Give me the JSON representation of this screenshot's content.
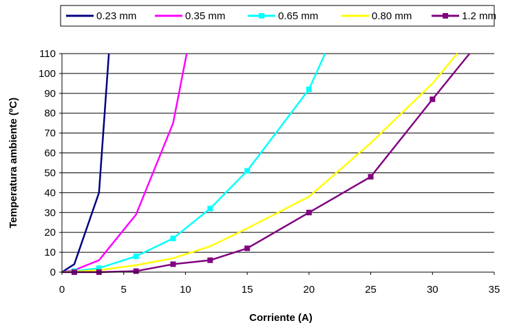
{
  "chart_data": {
    "type": "line",
    "xlabel": "Corriente (A)",
    "ylabel": "Temperatura ambiente (ºC)",
    "xlim": [
      0,
      35
    ],
    "ylim": [
      0,
      110
    ],
    "x_ticks": [
      0,
      5,
      10,
      15,
      20,
      25,
      30,
      35
    ],
    "y_ticks": [
      0,
      10,
      20,
      30,
      40,
      50,
      60,
      70,
      80,
      90,
      100,
      110
    ],
    "grid": "horizontal",
    "legend_position": "top",
    "series": [
      {
        "name": "0.23 mm",
        "color": "#000080",
        "marker": "none",
        "points": [
          [
            0,
            0
          ],
          [
            1,
            4
          ],
          [
            3,
            40
          ],
          [
            3.8,
            110
          ]
        ]
      },
      {
        "name": "0.35 mm",
        "color": "#ff00ff",
        "marker": "none",
        "points": [
          [
            0,
            0
          ],
          [
            1,
            1
          ],
          [
            3,
            6
          ],
          [
            6,
            29
          ],
          [
            9,
            75
          ],
          [
            10.1,
            110
          ]
        ]
      },
      {
        "name": "0.65 mm",
        "color": "#00ffff",
        "marker": "square",
        "points": [
          [
            0,
            0
          ],
          [
            1,
            0.5
          ],
          [
            3,
            2
          ],
          [
            6,
            8
          ],
          [
            9,
            17
          ],
          [
            12,
            32
          ],
          [
            15,
            51
          ],
          [
            20,
            92
          ],
          [
            21.3,
            110
          ]
        ],
        "marked": [
          1,
          3,
          6,
          9,
          12,
          15,
          20
        ]
      },
      {
        "name": "0.80 mm",
        "color": "#ffff00",
        "marker": "none",
        "points": [
          [
            0,
            0
          ],
          [
            3,
            1
          ],
          [
            6,
            3.5
          ],
          [
            9,
            7
          ],
          [
            12,
            13
          ],
          [
            15,
            22
          ],
          [
            20,
            38
          ],
          [
            25,
            65
          ],
          [
            30,
            95
          ],
          [
            32,
            110
          ]
        ]
      },
      {
        "name": "1.2 mm",
        "color": "#800080",
        "marker": "square",
        "points": [
          [
            0,
            0
          ],
          [
            1,
            0
          ],
          [
            3,
            0
          ],
          [
            6,
            0.5
          ],
          [
            9,
            4
          ],
          [
            12,
            6
          ],
          [
            15,
            12
          ],
          [
            20,
            30
          ],
          [
            25,
            48
          ],
          [
            30,
            87
          ],
          [
            33,
            110
          ]
        ],
        "marked": [
          1,
          3,
          6,
          9,
          12,
          15,
          20,
          25,
          30
        ]
      }
    ]
  }
}
